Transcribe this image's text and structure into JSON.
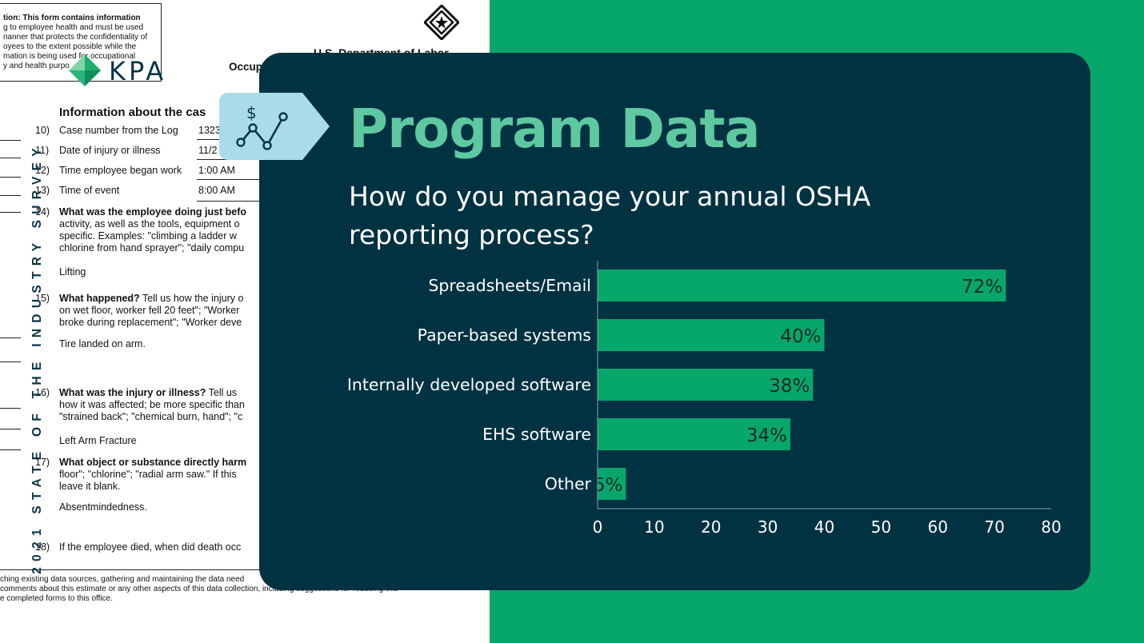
{
  "brand": {
    "logo_text": "KPA",
    "logo_color": "#0a3446",
    "accent_green": "#07a76b",
    "card_color": "#003242",
    "title_color": "#5ec8a0"
  },
  "sidebar_caption": "2021 STATE OF THE INDUSTRY SURVEY",
  "background_form": {
    "notice_lines": [
      "tion:  This form contains information",
      "g to employee health and must be used",
      "nanner that protects the confidentiality of",
      "oyees to the extent possible while the",
      "mation is being used for occupational",
      "y and health purpo"
    ],
    "agency": "U.S. Department of Labor",
    "header_fragment": "Occup",
    "section_title": "Information about the cas",
    "fields": [
      {
        "num": "10)",
        "label": "Case number from the Log",
        "value": "1323"
      },
      {
        "num": "11)",
        "label": "Date of injury or illness",
        "value": "11/2"
      },
      {
        "num": "12)",
        "label": "Time employee began work",
        "value": "1:00 AM"
      },
      {
        "num": "13)",
        "label": "Time of event",
        "value": "8:00 AM"
      }
    ],
    "q14": {
      "num": "14)",
      "title": "What was the employee doing just befo",
      "lines": [
        "activity, as well as the tools, equipment o",
        "specific.  Examples:  \"climbing a ladder w",
        "chlorine from hand sprayer\"; \"daily compu"
      ],
      "answer": "Lifting"
    },
    "q15": {
      "num": "15)",
      "title": "What happened?",
      "title_rest": " Tell us how the injury o",
      "lines": [
        "on wet floor, worker fell 20 feet\"; \"Worker",
        "broke during replacement\"; \"Worker deve"
      ],
      "answer": "Tire landed on arm."
    },
    "q16": {
      "num": "16)",
      "title": "What was the injury or illness?",
      "title_rest": " Tell us",
      "lines": [
        "how it was affected; be more specific than",
        "\"strained back\"; \"chemical burn, hand\"; \"c"
      ],
      "answer": "Left Arm Fracture"
    },
    "q17": {
      "num": "17)",
      "title": "What object or substance directly harm",
      "lines": [
        "floor\"; \"chlorine\"; \"radial arm saw.\" If this",
        "leave it blank."
      ],
      "answer": "Absentmindedness."
    },
    "q18": {
      "num": "18)",
      "text": "If the employee died, when did death occ"
    },
    "footer_lines": [
      "ching existing data sources, gathering and maintaining the data need",
      "comments about this estimate or any other aspects of this data collection, including suggestions for reducing this",
      "e completed forms to this office."
    ]
  },
  "card": {
    "title": "Program Data",
    "question": "How do you manage your annual OSHA reporting process?",
    "icon": "dollar-trend-chart-icon",
    "icon_tag_color": "#a9dcea"
  },
  "chart_data": {
    "type": "bar",
    "orientation": "horizontal",
    "categories": [
      "Spreadsheets/Email",
      "Paper-based systems",
      "Internally developed software",
      "EHS software",
      "Other"
    ],
    "values": [
      72,
      40,
      38,
      34,
      5
    ],
    "value_labels": [
      "72%",
      "40%",
      "38%",
      "34%",
      "5%"
    ],
    "xlim": [
      0,
      80
    ],
    "xticks": [
      0,
      10,
      20,
      30,
      40,
      50,
      60,
      70,
      80
    ],
    "bar_color": "#07a76b",
    "grid": false,
    "legend": "none",
    "title": "",
    "xlabel": "",
    "ylabel": ""
  }
}
